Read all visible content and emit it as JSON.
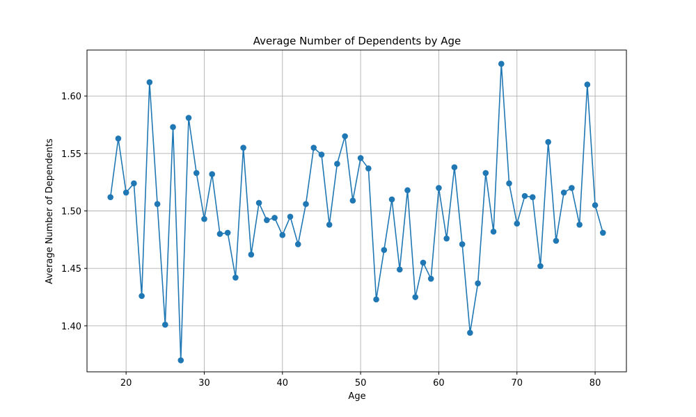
{
  "chart_data": {
    "type": "line",
    "title": "Average Number of Dependents by Age",
    "xlabel": "Age",
    "ylabel": "Average Number of Dependents",
    "xlim": [
      15,
      84
    ],
    "ylim": [
      1.36,
      1.64
    ],
    "xticks": [
      20,
      30,
      40,
      50,
      60,
      70,
      80
    ],
    "yticks": [
      1.4,
      1.45,
      1.5,
      1.55,
      1.6
    ],
    "grid": true,
    "color": "#1f77b4",
    "marker": "circle",
    "x": [
      18,
      19,
      20,
      21,
      22,
      23,
      24,
      25,
      26,
      27,
      28,
      29,
      30,
      31,
      32,
      33,
      34,
      35,
      36,
      37,
      38,
      39,
      40,
      41,
      42,
      43,
      44,
      45,
      46,
      47,
      48,
      49,
      50,
      51,
      52,
      53,
      54,
      55,
      56,
      57,
      58,
      59,
      60,
      61,
      62,
      63,
      64,
      65,
      66,
      67,
      68,
      69,
      70,
      71,
      72,
      73,
      74,
      75,
      76,
      77,
      78,
      79,
      80,
      81
    ],
    "y": [
      1.512,
      1.563,
      1.516,
      1.524,
      1.426,
      1.612,
      1.506,
      1.401,
      1.573,
      1.37,
      1.581,
      1.533,
      1.493,
      1.532,
      1.48,
      1.481,
      1.442,
      1.555,
      1.462,
      1.507,
      1.492,
      1.494,
      1.479,
      1.495,
      1.471,
      1.506,
      1.555,
      1.549,
      1.488,
      1.541,
      1.565,
      1.509,
      1.546,
      1.537,
      1.423,
      1.466,
      1.51,
      1.449,
      1.518,
      1.425,
      1.455,
      1.441,
      1.52,
      1.476,
      1.538,
      1.471,
      1.394,
      1.437,
      1.533,
      1.482,
      1.628,
      1.524,
      1.489,
      1.513,
      1.512,
      1.452,
      1.56,
      1.474,
      1.516,
      1.52,
      1.488,
      1.61,
      1.505,
      1.481
    ]
  }
}
